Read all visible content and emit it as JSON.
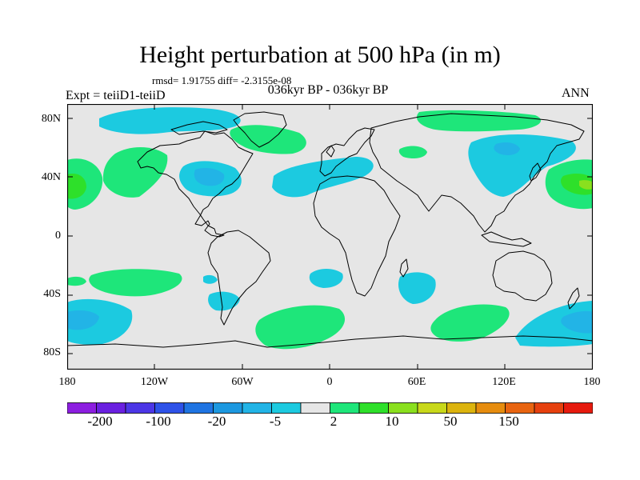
{
  "title": "Height perturbation at 500 hPa (in m)",
  "stats": "rmsd= 1.91755 diff= -2.3155e-08",
  "subtitle": "036kyr BP - 036kyr BP",
  "experiment": "Expt = teiiD1-teiiD",
  "season": "ANN",
  "lat_ticks": [
    "80N",
    "40N",
    "0",
    "40S",
    "80S"
  ],
  "lon_ticks": [
    "180",
    "120W",
    "60W",
    "0",
    "60E",
    "120E",
    "180"
  ],
  "colorbar": {
    "labels": [
      "-200",
      "-100",
      "-20",
      "-5",
      "2",
      "10",
      "50",
      "150"
    ],
    "colors": [
      "#8c1ee0",
      "#6a20e0",
      "#4c36e6",
      "#2e52e8",
      "#1f74e2",
      "#1c98e0",
      "#22b4e6",
      "#1ccae0",
      "#e6e6e6",
      "#1ee67a",
      "#2ee02a",
      "#8ae01e",
      "#c8d81a",
      "#dcb40e",
      "#e68c0e",
      "#e86410",
      "#e6400e",
      "#e61a0e"
    ]
  },
  "map_colors": {
    "background": "#e6e6e6",
    "light_blue": "#1ccae0",
    "mid_blue": "#22b4e6",
    "dark_blue": "#1f98e0",
    "light_green": "#1ee67a",
    "mid_green": "#2ee02a",
    "yellow_green": "#8ae01e"
  }
}
